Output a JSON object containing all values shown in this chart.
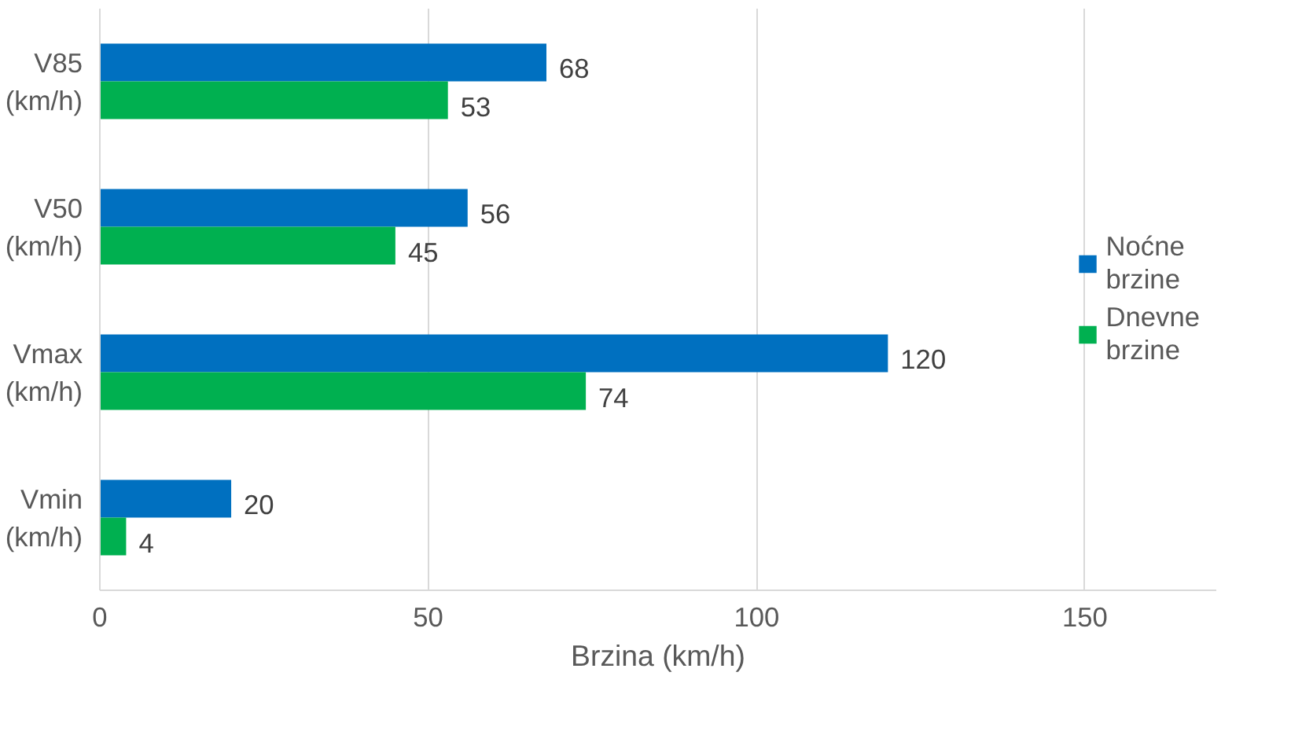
{
  "chart_data": {
    "type": "bar",
    "orientation": "horizontal",
    "xlabel": "Brzina (km/h)",
    "categories": [
      "V85 (km/h)",
      "V50 (km/h)",
      "Vmax (km/h)",
      "Vmin (km/h)"
    ],
    "series": [
      {
        "name": "Noćne brzine",
        "color": "#0070c0",
        "values": [
          68,
          56,
          120,
          20
        ]
      },
      {
        "name": "Dnevne brzine",
        "color": "#00b050",
        "values": [
          53,
          45,
          74,
          4
        ]
      }
    ],
    "xlim": [
      0,
      170
    ],
    "xticks": [
      0,
      50,
      100,
      150
    ],
    "grid": "x",
    "legend": "right",
    "data_labels": true
  }
}
